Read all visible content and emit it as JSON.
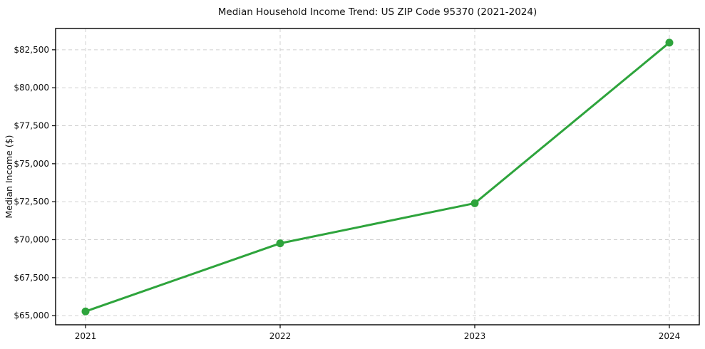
{
  "chart_data": {
    "type": "line",
    "title": "Median Household Income Trend: US ZIP Code 95370 (2021-2024)",
    "xlabel": "",
    "ylabel": "Median Income ($)",
    "categories": [
      "2021",
      "2022",
      "2023",
      "2024"
    ],
    "values": [
      65280,
      69760,
      72400,
      82970
    ],
    "y_ticks": [
      65000,
      67500,
      70000,
      72500,
      75000,
      77500,
      80000,
      82500
    ],
    "y_tick_labels": [
      "$65,000",
      "$67,500",
      "$70,000",
      "$72,500",
      "$75,000",
      "$77,500",
      "$80,000",
      "$82,500"
    ],
    "ylim": [
      64400,
      83900
    ],
    "grid": true,
    "grid_style": "dashed",
    "legend": "none",
    "colors": {
      "line": "#2ea43c",
      "marker": "#2ea43c",
      "grid": "#d0d0d0",
      "axis": "#000000",
      "text": "#111111",
      "background": "#ffffff"
    }
  }
}
